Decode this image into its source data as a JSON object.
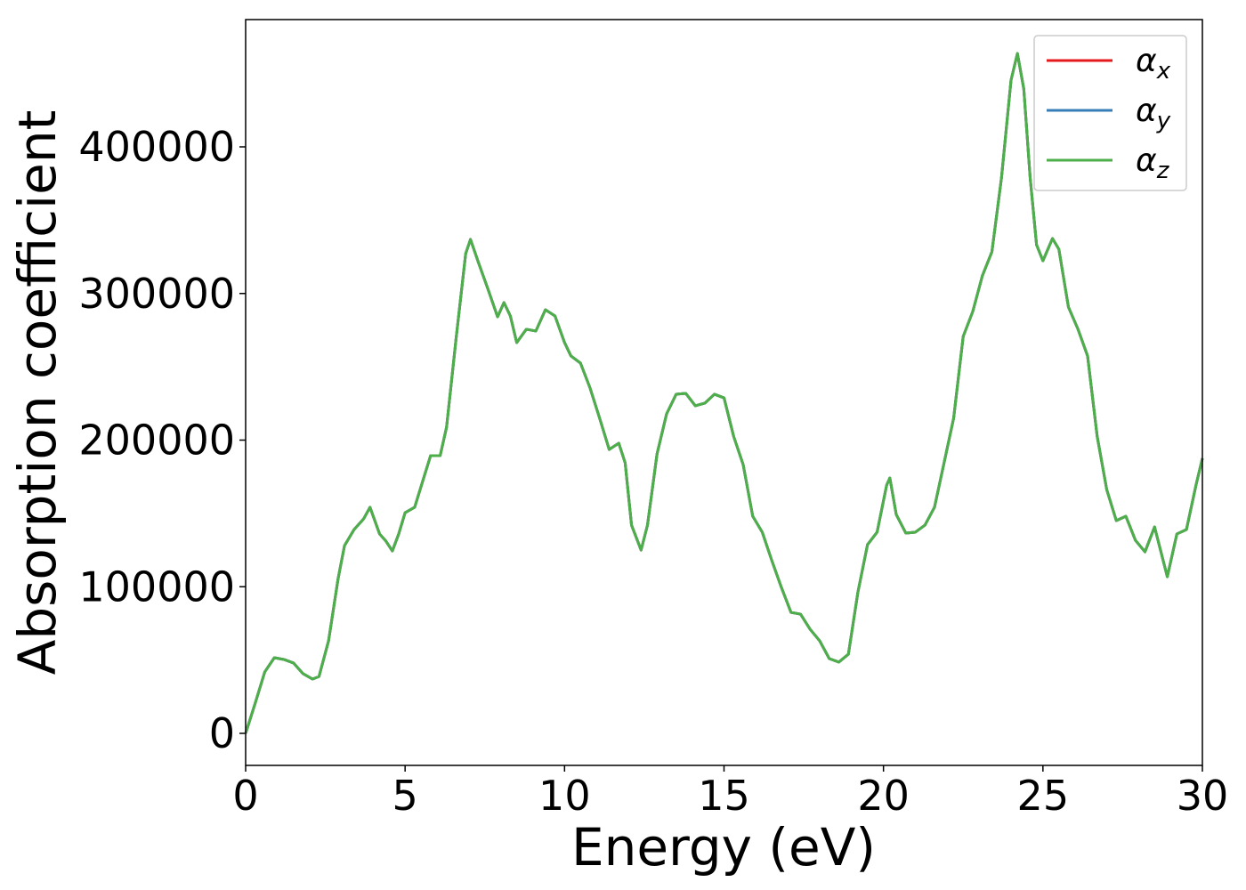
{
  "chart_data": {
    "type": "line",
    "xlabel": "Energy (eV)",
    "ylabel": "Absorption coefficient",
    "x": [
      0,
      0.3,
      0.6,
      0.9,
      1.2,
      1.5,
      1.8,
      2.1,
      2.3,
      2.6,
      2.9,
      3.1,
      3.4,
      3.7,
      3.9,
      4.2,
      4.4,
      4.6,
      4.8,
      5.0,
      5.3,
      5.6,
      5.8,
      6.1,
      6.3,
      6.6,
      6.9,
      7.05,
      7.3,
      7.6,
      7.9,
      8.1,
      8.3,
      8.5,
      8.8,
      9.1,
      9.4,
      9.7,
      10.0,
      10.2,
      10.5,
      10.8,
      11.1,
      11.4,
      11.7,
      11.9,
      12.1,
      12.4,
      12.6,
      12.9,
      13.2,
      13.5,
      13.8,
      14.1,
      14.4,
      14.7,
      15.0,
      15.3,
      15.6,
      15.9,
      16.2,
      16.5,
      16.8,
      17.1,
      17.4,
      17.7,
      18.0,
      18.3,
      18.6,
      18.9,
      19.2,
      19.5,
      19.8,
      20.1,
      20.2,
      20.4,
      20.7,
      21.0,
      21.3,
      21.6,
      21.9,
      22.2,
      22.5,
      22.8,
      23.1,
      23.4,
      23.7,
      24.0,
      24.2,
      24.4,
      24.6,
      24.8,
      25.0,
      25.3,
      25.5,
      25.8,
      26.1,
      26.4,
      26.7,
      27.0,
      27.3,
      27.6,
      27.9,
      28.2,
      28.5,
      28.7,
      28.9,
      29.2,
      29.5,
      29.8,
      30.0
    ],
    "series": [
      {
        "name": "α_x",
        "color": "#e41a1c",
        "values": [
          0,
          20600,
          41900,
          51600,
          50400,
          48000,
          40700,
          37000,
          38800,
          63100,
          105600,
          128000,
          139000,
          146300,
          154200,
          136000,
          131100,
          124400,
          136000,
          150500,
          154200,
          175400,
          189400,
          189400,
          208800,
          269500,
          327200,
          336900,
          321100,
          302900,
          284100,
          293800,
          284700,
          266500,
          275600,
          274400,
          288900,
          284700,
          266500,
          257400,
          252500,
          235500,
          214900,
          193600,
          197900,
          184500,
          142000,
          125000,
          142000,
          190600,
          217900,
          231300,
          231900,
          223400,
          225200,
          231300,
          228800,
          202700,
          183300,
          148100,
          137200,
          117800,
          99500,
          82500,
          81300,
          71000,
          63100,
          51000,
          48600,
          54000,
          96500,
          128700,
          137200,
          169300,
          174200,
          149300,
          136600,
          137200,
          142000,
          154200,
          184500,
          214900,
          270700,
          287700,
          312000,
          328400,
          378800,
          445500,
          463700,
          439500,
          378800,
          333200,
          322300,
          337500,
          330200,
          290700,
          275600,
          257400,
          202700,
          166300,
          145100,
          148100,
          131700,
          123800,
          140800,
          123800,
          106800,
          136000,
          139000,
          169300,
          187600
        ]
      },
      {
        "name": "α_y",
        "color": "#377eb8",
        "values": [
          0,
          20600,
          41900,
          51600,
          50400,
          48000,
          40700,
          37000,
          38800,
          63100,
          105600,
          128000,
          139000,
          146300,
          154200,
          136000,
          131100,
          124400,
          136000,
          150500,
          154200,
          175400,
          189400,
          189400,
          208800,
          269500,
          327200,
          336900,
          321100,
          302900,
          284100,
          293800,
          284700,
          266500,
          275600,
          274400,
          288900,
          284700,
          266500,
          257400,
          252500,
          235500,
          214900,
          193600,
          197900,
          184500,
          142000,
          125000,
          142000,
          190600,
          217900,
          231300,
          231900,
          223400,
          225200,
          231300,
          228800,
          202700,
          183300,
          148100,
          137200,
          117800,
          99500,
          82500,
          81300,
          71000,
          63100,
          51000,
          48600,
          54000,
          96500,
          128700,
          137200,
          169300,
          174200,
          149300,
          136600,
          137200,
          142000,
          154200,
          184500,
          214900,
          270700,
          287700,
          312000,
          328400,
          378800,
          445500,
          463700,
          439500,
          378800,
          333200,
          322300,
          337500,
          330200,
          290700,
          275600,
          257400,
          202700,
          166300,
          145100,
          148100,
          131700,
          123800,
          140800,
          123800,
          106800,
          136000,
          139000,
          169300,
          187600
        ]
      },
      {
        "name": "α_z",
        "color": "#4daf4a",
        "values": [
          0,
          20600,
          41900,
          51600,
          50400,
          48000,
          40700,
          37000,
          38800,
          63100,
          105600,
          128000,
          139000,
          146300,
          154200,
          136000,
          131100,
          124400,
          136000,
          150500,
          154200,
          175400,
          189400,
          189400,
          208800,
          269500,
          327200,
          336900,
          321100,
          302900,
          284100,
          293800,
          284700,
          266500,
          275600,
          274400,
          288900,
          284700,
          266500,
          257400,
          252500,
          235500,
          214900,
          193600,
          197900,
          184500,
          142000,
          125000,
          142000,
          190600,
          217900,
          231300,
          231900,
          223400,
          225200,
          231300,
          228800,
          202700,
          183300,
          148100,
          137200,
          117800,
          99500,
          82500,
          81300,
          71000,
          63100,
          51000,
          48600,
          54000,
          96500,
          128700,
          137200,
          169300,
          174200,
          149300,
          136600,
          137200,
          142000,
          154200,
          184500,
          214900,
          270700,
          287700,
          312000,
          328400,
          378800,
          445500,
          463700,
          439500,
          378800,
          333200,
          322300,
          337500,
          330200,
          290700,
          275600,
          257400,
          202700,
          166300,
          145100,
          148100,
          131700,
          123800,
          140800,
          123800,
          106800,
          136000,
          139000,
          169300,
          187600
        ]
      }
    ],
    "xlim": [
      0,
      30
    ],
    "xticks": [
      0,
      5,
      10,
      15,
      20,
      25,
      30
    ],
    "ylim": [
      -21850,
      486800
    ],
    "yticks": [
      0,
      100000,
      200000,
      300000,
      400000
    ],
    "grid": false,
    "legend": "upper right"
  }
}
